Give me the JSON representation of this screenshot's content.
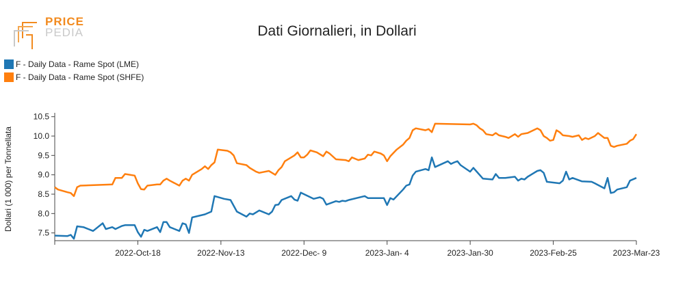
{
  "logo": {
    "word1": "PRICE",
    "word2": "PEDIA"
  },
  "chart_data": {
    "type": "line",
    "title": "Dati Giornalieri, in Dollari",
    "xlabel": "",
    "ylabel": "Dollari (1 000) per Tonnellata",
    "x_ticks": [
      "2022-Oct-18",
      "2022-Nov-13",
      "2022-Dec- 9",
      "2023-Jan- 4",
      "2023-Jan-30",
      "2023-Feb-25",
      "2023-Mar-23"
    ],
    "y_ticks": [
      7.5,
      8.0,
      8.5,
      9.0,
      9.5,
      10.0,
      10.5
    ],
    "ylim": [
      7.3,
      10.6
    ],
    "xlim": [
      "2022-Sep-22",
      "2023-Mar-23"
    ],
    "grid": false,
    "legend_position": "top-left",
    "series": [
      {
        "name": "F - Daily Data - Rame Spot (LME)",
        "color": "#1f77b4",
        "values": [
          [
            "2022-09-22",
            7.43
          ],
          [
            "2022-09-26",
            7.42
          ],
          [
            "2022-09-27",
            7.45
          ],
          [
            "2022-09-28",
            7.35
          ],
          [
            "2022-09-29",
            7.67
          ],
          [
            "2022-10-01",
            7.65
          ],
          [
            "2022-10-04",
            7.55
          ],
          [
            "2022-10-07",
            7.75
          ],
          [
            "2022-10-08",
            7.6
          ],
          [
            "2022-10-10",
            7.65
          ],
          [
            "2022-10-11",
            7.6
          ],
          [
            "2022-10-13",
            7.68
          ],
          [
            "2022-10-14",
            7.7
          ],
          [
            "2022-10-17",
            7.7
          ],
          [
            "2022-10-18",
            7.52
          ],
          [
            "2022-10-19",
            7.4
          ],
          [
            "2022-10-20",
            7.58
          ],
          [
            "2022-10-21",
            7.55
          ],
          [
            "2022-10-24",
            7.65
          ],
          [
            "2022-10-25",
            7.52
          ],
          [
            "2022-10-26",
            7.78
          ],
          [
            "2022-10-27",
            7.78
          ],
          [
            "2022-10-28",
            7.65
          ],
          [
            "2022-10-31",
            7.55
          ],
          [
            "2022-11-01",
            7.75
          ],
          [
            "2022-11-02",
            7.72
          ],
          [
            "2022-11-03",
            7.5
          ],
          [
            "2022-11-04",
            7.9
          ],
          [
            "2022-11-08",
            7.98
          ],
          [
            "2022-11-10",
            8.05
          ],
          [
            "2022-11-11",
            8.45
          ],
          [
            "2022-11-14",
            8.38
          ],
          [
            "2022-11-16",
            8.35
          ],
          [
            "2022-11-18",
            8.05
          ],
          [
            "2022-11-21",
            7.92
          ],
          [
            "2022-11-22",
            8.0
          ],
          [
            "2022-11-23",
            7.98
          ],
          [
            "2022-11-25",
            8.08
          ],
          [
            "2022-11-28",
            7.98
          ],
          [
            "2022-11-29",
            8.05
          ],
          [
            "2022-11-30",
            8.22
          ],
          [
            "2022-12-01",
            8.23
          ],
          [
            "2022-12-02",
            8.35
          ],
          [
            "2022-12-05",
            8.45
          ],
          [
            "2022-12-06",
            8.36
          ],
          [
            "2022-12-07",
            8.33
          ],
          [
            "2022-12-08",
            8.54
          ],
          [
            "2022-12-12",
            8.38
          ],
          [
            "2022-12-14",
            8.42
          ],
          [
            "2022-12-15",
            8.38
          ],
          [
            "2022-12-16",
            8.23
          ],
          [
            "2022-12-19",
            8.32
          ],
          [
            "2022-12-20",
            8.3
          ],
          [
            "2022-12-21",
            8.33
          ],
          [
            "2022-12-22",
            8.32
          ],
          [
            "2022-12-23",
            8.35
          ],
          [
            "2022-12-28",
            8.45
          ],
          [
            "2022-12-29",
            8.4
          ],
          [
            "2023-01-03",
            8.4
          ],
          [
            "2023-01-04",
            8.22
          ],
          [
            "2023-01-05",
            8.4
          ],
          [
            "2023-01-06",
            8.36
          ],
          [
            "2023-01-09",
            8.62
          ],
          [
            "2023-01-10",
            8.72
          ],
          [
            "2023-01-11",
            8.75
          ],
          [
            "2023-01-12",
            8.98
          ],
          [
            "2023-01-13",
            9.08
          ],
          [
            "2023-01-16",
            9.15
          ],
          [
            "2023-01-17",
            9.12
          ],
          [
            "2023-01-18",
            9.45
          ],
          [
            "2023-01-19",
            9.2
          ],
          [
            "2023-01-23",
            9.35
          ],
          [
            "2023-01-24",
            9.28
          ],
          [
            "2023-01-25",
            9.32
          ],
          [
            "2023-01-26",
            9.35
          ],
          [
            "2023-01-27",
            9.25
          ],
          [
            "2023-01-30",
            9.08
          ],
          [
            "2023-01-31",
            9.18
          ],
          [
            "2023-02-03",
            8.9
          ],
          [
            "2023-02-06",
            8.88
          ],
          [
            "2023-02-07",
            9.02
          ],
          [
            "2023-02-08",
            8.92
          ],
          [
            "2023-02-10",
            8.92
          ],
          [
            "2023-02-13",
            8.95
          ],
          [
            "2023-02-14",
            8.85
          ],
          [
            "2023-02-15",
            8.9
          ],
          [
            "2023-02-16",
            8.88
          ],
          [
            "2023-02-17",
            8.95
          ],
          [
            "2023-02-20",
            9.1
          ],
          [
            "2023-02-21",
            9.12
          ],
          [
            "2023-02-22",
            9.05
          ],
          [
            "2023-02-23",
            8.82
          ],
          [
            "2023-02-27",
            8.78
          ],
          [
            "2023-02-28",
            8.85
          ],
          [
            "2023-03-01",
            9.08
          ],
          [
            "2023-03-02",
            8.88
          ],
          [
            "2023-03-03",
            8.92
          ],
          [
            "2023-03-06",
            8.83
          ],
          [
            "2023-03-09",
            8.82
          ],
          [
            "2023-03-10",
            8.78
          ],
          [
            "2023-03-13",
            8.65
          ],
          [
            "2023-03-14",
            8.92
          ],
          [
            "2023-03-15",
            8.53
          ],
          [
            "2023-03-16",
            8.55
          ],
          [
            "2023-03-17",
            8.62
          ],
          [
            "2023-03-20",
            8.68
          ],
          [
            "2023-03-21",
            8.85
          ],
          [
            "2023-03-23",
            8.92
          ]
        ]
      },
      {
        "name": "F - Daily Data - Rame Spot (SHFE)",
        "color": "#ff7f0e",
        "values": [
          [
            "2022-09-22",
            8.68
          ],
          [
            "2022-09-23",
            8.62
          ],
          [
            "2022-09-26",
            8.55
          ],
          [
            "2022-09-27",
            8.53
          ],
          [
            "2022-09-28",
            8.45
          ],
          [
            "2022-09-29",
            8.68
          ],
          [
            "2022-09-30",
            8.72
          ],
          [
            "2022-10-10",
            8.75
          ],
          [
            "2022-10-11",
            8.92
          ],
          [
            "2022-10-12",
            8.92
          ],
          [
            "2022-10-13",
            8.92
          ],
          [
            "2022-10-14",
            9.02
          ],
          [
            "2022-10-17",
            8.98
          ],
          [
            "2022-10-18",
            8.78
          ],
          [
            "2022-10-19",
            8.63
          ],
          [
            "2022-10-20",
            8.62
          ],
          [
            "2022-10-21",
            8.72
          ],
          [
            "2022-10-24",
            8.75
          ],
          [
            "2022-10-25",
            8.75
          ],
          [
            "2022-10-26",
            8.85
          ],
          [
            "2022-10-27",
            8.9
          ],
          [
            "2022-10-28",
            8.85
          ],
          [
            "2022-10-31",
            8.72
          ],
          [
            "2022-11-01",
            8.85
          ],
          [
            "2022-11-02",
            8.9
          ],
          [
            "2022-11-03",
            8.85
          ],
          [
            "2022-11-04",
            9.0
          ],
          [
            "2022-11-07",
            9.15
          ],
          [
            "2022-11-08",
            9.22
          ],
          [
            "2022-11-09",
            9.15
          ],
          [
            "2022-11-10",
            9.25
          ],
          [
            "2022-11-11",
            9.32
          ],
          [
            "2022-11-12",
            9.65
          ],
          [
            "2022-11-15",
            9.62
          ],
          [
            "2022-11-16",
            9.58
          ],
          [
            "2022-11-17",
            9.5
          ],
          [
            "2022-11-18",
            9.3
          ],
          [
            "2022-11-21",
            9.25
          ],
          [
            "2022-11-22",
            9.18
          ],
          [
            "2022-11-24",
            9.08
          ],
          [
            "2022-11-25",
            9.05
          ],
          [
            "2022-11-28",
            9.1
          ],
          [
            "2022-11-29",
            9.05
          ],
          [
            "2022-11-30",
            9.0
          ],
          [
            "2022-12-01",
            9.12
          ],
          [
            "2022-12-02",
            9.2
          ],
          [
            "2022-12-03",
            9.35
          ],
          [
            "2022-12-05",
            9.45
          ],
          [
            "2022-12-06",
            9.5
          ],
          [
            "2022-12-07",
            9.58
          ],
          [
            "2022-12-08",
            9.45
          ],
          [
            "2022-12-09",
            9.45
          ],
          [
            "2022-12-10",
            9.52
          ],
          [
            "2022-12-11",
            9.63
          ],
          [
            "2022-12-13",
            9.58
          ],
          [
            "2022-12-15",
            9.48
          ],
          [
            "2022-12-16",
            9.6
          ],
          [
            "2022-12-17",
            9.55
          ],
          [
            "2022-12-19",
            9.4
          ],
          [
            "2022-12-22",
            9.38
          ],
          [
            "2022-12-23",
            9.35
          ],
          [
            "2022-12-24",
            9.45
          ],
          [
            "2022-12-26",
            9.38
          ],
          [
            "2022-12-28",
            9.42
          ],
          [
            "2022-12-29",
            9.52
          ],
          [
            "2022-12-30",
            9.5
          ],
          [
            "2022-12-31",
            9.6
          ],
          [
            "2023-01-02",
            9.55
          ],
          [
            "2023-01-03",
            9.5
          ],
          [
            "2023-01-04",
            9.35
          ],
          [
            "2023-01-05",
            9.48
          ],
          [
            "2023-01-07",
            9.65
          ],
          [
            "2023-01-09",
            9.78
          ],
          [
            "2023-01-10",
            9.88
          ],
          [
            "2023-01-11",
            9.95
          ],
          [
            "2023-01-12",
            10.15
          ],
          [
            "2023-01-13",
            10.2
          ],
          [
            "2023-01-16",
            10.15
          ],
          [
            "2023-01-17",
            10.18
          ],
          [
            "2023-01-18",
            10.1
          ],
          [
            "2023-01-19",
            10.32
          ],
          [
            "2023-01-30",
            10.3
          ],
          [
            "2023-01-31",
            10.32
          ],
          [
            "2023-02-01",
            10.28
          ],
          [
            "2023-02-02",
            10.2
          ],
          [
            "2023-02-03",
            10.15
          ],
          [
            "2023-02-04",
            10.05
          ],
          [
            "2023-02-06",
            10.02
          ],
          [
            "2023-02-07",
            10.08
          ],
          [
            "2023-02-08",
            10.02
          ],
          [
            "2023-02-10",
            9.98
          ],
          [
            "2023-02-11",
            9.95
          ],
          [
            "2023-02-13",
            10.05
          ],
          [
            "2023-02-14",
            9.98
          ],
          [
            "2023-02-15",
            10.05
          ],
          [
            "2023-02-17",
            10.08
          ],
          [
            "2023-02-18",
            10.12
          ],
          [
            "2023-02-20",
            10.2
          ],
          [
            "2023-02-21",
            10.15
          ],
          [
            "2023-02-22",
            10.0
          ],
          [
            "2023-02-23",
            9.95
          ],
          [
            "2023-02-24",
            9.88
          ],
          [
            "2023-02-25",
            9.9
          ],
          [
            "2023-02-26",
            10.15
          ],
          [
            "2023-02-27",
            10.1
          ],
          [
            "2023-02-28",
            10.02
          ],
          [
            "2023-03-02",
            10.0
          ],
          [
            "2023-03-03",
            9.98
          ],
          [
            "2023-03-05",
            10.02
          ],
          [
            "2023-03-06",
            9.9
          ],
          [
            "2023-03-07",
            9.95
          ],
          [
            "2023-03-08",
            9.92
          ],
          [
            "2023-03-10",
            10.0
          ],
          [
            "2023-03-11",
            10.08
          ],
          [
            "2023-03-13",
            9.95
          ],
          [
            "2023-03-14",
            9.95
          ],
          [
            "2023-03-15",
            9.75
          ],
          [
            "2023-03-16",
            9.72
          ],
          [
            "2023-03-17",
            9.75
          ],
          [
            "2023-03-20",
            9.8
          ],
          [
            "2023-03-21",
            9.88
          ],
          [
            "2023-03-22",
            9.92
          ],
          [
            "2023-03-23",
            10.05
          ]
        ]
      }
    ]
  }
}
